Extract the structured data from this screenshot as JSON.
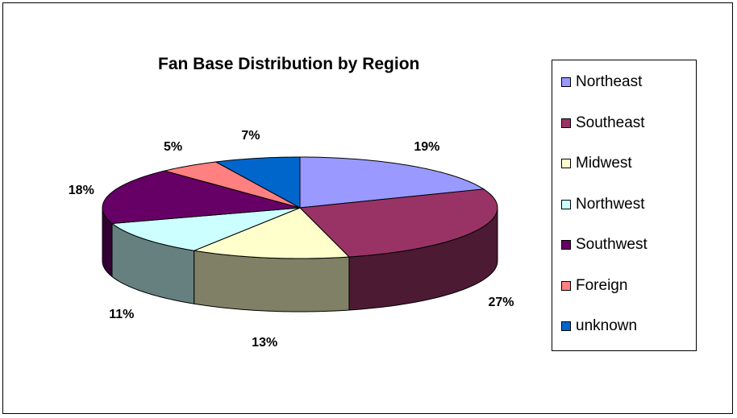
{
  "chart_data": {
    "type": "pie",
    "title": "Fan Base Distribution by Region",
    "categories": [
      "Northeast",
      "Southeast",
      "Midwest",
      "Northwest",
      "Southwest",
      "Foreign",
      "unknown"
    ],
    "values": [
      19,
      27,
      13,
      11,
      18,
      5,
      7
    ],
    "value_labels": [
      "19%",
      "27%",
      "13%",
      "11%",
      "18%",
      "5%",
      "7%"
    ],
    "colors": [
      "#9999FF",
      "#993366",
      "#FFFFCC",
      "#CCFFFF",
      "#660066",
      "#FF8080",
      "#0066CC"
    ],
    "style": "3d-pie",
    "legend_position": "right"
  }
}
